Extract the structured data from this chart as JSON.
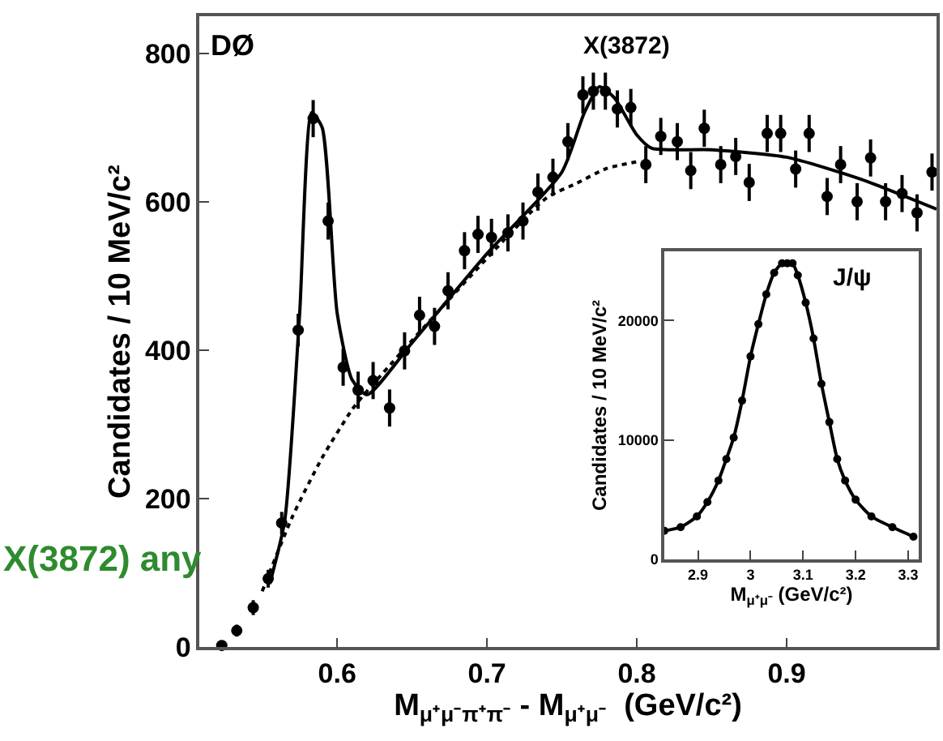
{
  "chart_data": [
    {
      "type": "scatter",
      "xlabel": "M$_{μ⁺μ⁻π⁺π⁻}$ - M$_{μ⁺μ⁻}$  (GeV/c²)",
      "ylabel": "Candidates / 10 MeV/c²",
      "xlim": [
        0.508,
        1.0
      ],
      "ylim": [
        0,
        850
      ],
      "xticks": [
        0.6,
        0.7,
        0.8,
        0.9
      ],
      "yticks": [
        0,
        200,
        400,
        600,
        800
      ],
      "annotations": [
        "DØ",
        "X(3872)",
        "X(3872) any"
      ],
      "series": [
        {
          "marker": "circle",
          "color": "#000000",
          "x": [
            0.523,
            0.533,
            0.544,
            0.554,
            0.563,
            0.574,
            0.584,
            0.594,
            0.604,
            0.614,
            0.624,
            0.635,
            0.645,
            0.655,
            0.665,
            0.674,
            0.685,
            0.694,
            0.703,
            0.714,
            0.724,
            0.734,
            0.744,
            0.754,
            0.764,
            0.771,
            0.779,
            0.787,
            0.796,
            0.806,
            0.816,
            0.827,
            0.836,
            0.845,
            0.856,
            0.866,
            0.875,
            0.887,
            0.896,
            0.906,
            0.915,
            0.927,
            0.936,
            0.947,
            0.956,
            0.966,
            0.977,
            0.987,
            0.997
          ],
          "values": [
            2,
            22,
            53,
            92,
            167,
            427,
            712,
            574,
            377,
            346,
            359,
            322,
            399,
            447,
            432,
            480,
            534,
            556,
            552,
            558,
            574,
            613,
            633,
            681,
            744,
            749,
            749,
            725,
            727,
            650,
            688,
            681,
            642,
            699,
            650,
            661,
            626,
            692,
            692,
            644,
            692,
            607,
            650,
            600,
            659,
            600,
            611,
            585,
            640
          ],
          "errors": [
            5,
            8,
            10,
            12,
            15,
            22,
            25,
            25,
            25,
            25,
            25,
            25,
            25,
            25,
            25,
            25,
            25,
            25,
            25,
            25,
            25,
            25,
            25,
            25,
            25,
            25,
            25,
            25,
            25,
            25,
            25,
            25,
            25,
            25,
            25,
            25,
            25,
            25,
            25,
            25,
            25,
            25,
            25,
            25,
            25,
            25,
            25,
            25,
            25
          ]
        },
        {
          "type": "line",
          "color": "#000000",
          "line_style": "solid",
          "x": [
            0.555,
            0.565,
            0.575,
            0.583,
            0.59,
            0.6,
            0.61,
            0.62,
            0.65,
            0.7,
            0.75,
            0.765,
            0.775,
            0.785,
            0.8,
            0.81,
            0.85,
            0.9,
            0.95,
            1.0
          ],
          "values": [
            85,
            170,
            450,
            720,
            700,
            450,
            360,
            340,
            410,
            530,
            640,
            720,
            755,
            740,
            690,
            672,
            670,
            660,
            630,
            590
          ]
        },
        {
          "type": "line",
          "color": "#000000",
          "line_style": "dotted",
          "x": [
            0.55,
            0.57,
            0.59,
            0.61,
            0.62,
            0.739,
            0.76,
            0.78,
            0.803
          ],
          "values": [
            75,
            175,
            255,
            320,
            345,
            604,
            625,
            645,
            655
          ]
        }
      ]
    },
    {
      "type": "line",
      "xlabel": "M$_{μ⁺μ⁻}$ (GeV/c²)",
      "ylabel": "Candidates / 10 MeV/c²",
      "xlim": [
        2.836,
        3.32
      ],
      "ylim": [
        0,
        25800
      ],
      "xticks": [
        2.9,
        3,
        3.1,
        3.2,
        3.3
      ],
      "yticks": [
        0,
        10000,
        20000
      ],
      "marker": "circle",
      "annotations": [
        "J/ψ"
      ],
      "series": [
        {
          "color": "#000000",
          "x": [
            2.836,
            2.867,
            2.898,
            2.918,
            2.939,
            2.954,
            2.968,
            2.984,
            3.0,
            3.015,
            3.03,
            3.045,
            3.06,
            3.07,
            3.08,
            3.09,
            3.105,
            3.12,
            3.135,
            3.15,
            3.165,
            3.18,
            3.2,
            3.23,
            3.27,
            3.31
          ],
          "values": [
            2400,
            2700,
            3600,
            4800,
            6600,
            8400,
            10200,
            13300,
            17000,
            19700,
            22200,
            24000,
            24800,
            24800,
            24800,
            23800,
            21500,
            18500,
            14700,
            11500,
            8400,
            6600,
            5000,
            3600,
            2700,
            1900
          ]
        }
      ]
    }
  ]
}
